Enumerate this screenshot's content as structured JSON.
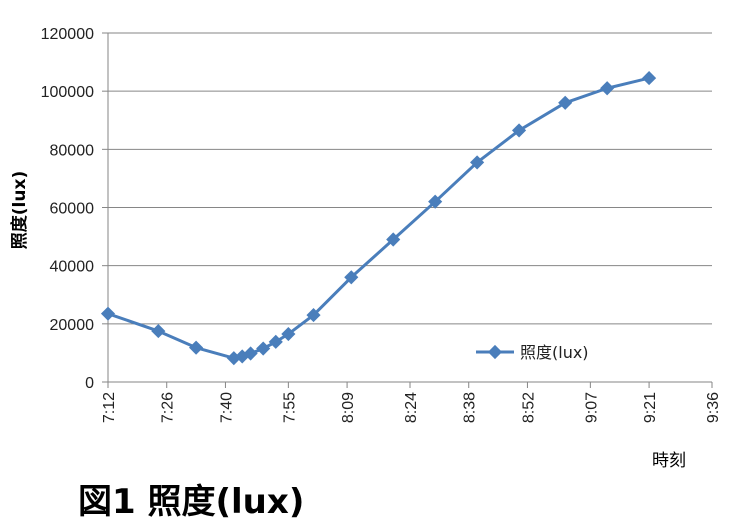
{
  "chart_data": {
    "type": "line",
    "ylabel": "照度(lux)",
    "xlabel": "時刻",
    "ylim": [
      0,
      120000
    ],
    "yticks": [
      0,
      20000,
      40000,
      60000,
      80000,
      100000,
      120000
    ],
    "xlim": [
      "7:12",
      "9:36"
    ],
    "xticks": [
      "7:12",
      "7:26",
      "7:40",
      "7:55",
      "8:09",
      "8:24",
      "8:38",
      "8:52",
      "9:07",
      "9:21",
      "9:36"
    ],
    "grid": "horizontal",
    "legend_position": "inside-lower-right",
    "series": [
      {
        "name": "照度(lux)",
        "color": "#4a7ebb",
        "marker": "diamond",
        "points": [
          {
            "x": "7:12",
            "y": 23500
          },
          {
            "x": "7:24",
            "y": 17500
          },
          {
            "x": "7:33",
            "y": 11800
          },
          {
            "x": "7:42",
            "y": 8200
          },
          {
            "x": "7:44",
            "y": 8800
          },
          {
            "x": "7:46",
            "y": 9800
          },
          {
            "x": "7:49",
            "y": 11500
          },
          {
            "x": "7:52",
            "y": 13800
          },
          {
            "x": "7:55",
            "y": 16500
          },
          {
            "x": "8:01",
            "y": 23000
          },
          {
            "x": "8:10",
            "y": 36000
          },
          {
            "x": "8:20",
            "y": 49000
          },
          {
            "x": "8:30",
            "y": 62000
          },
          {
            "x": "8:40",
            "y": 75500
          },
          {
            "x": "8:50",
            "y": 86500
          },
          {
            "x": "9:01",
            "y": 96000
          },
          {
            "x": "9:11",
            "y": 101000
          },
          {
            "x": "9:21",
            "y": 104500
          }
        ]
      }
    ]
  },
  "caption": "図1 照度(lux)"
}
